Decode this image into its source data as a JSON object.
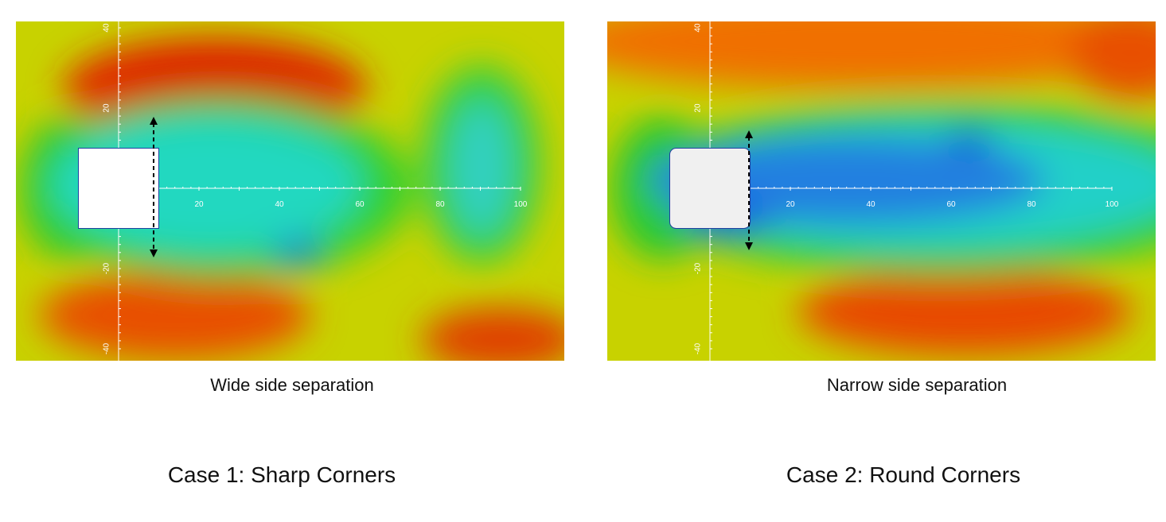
{
  "panels": [
    {
      "caption": "Wide side separation",
      "title": "Case 1: Sharp Corners",
      "xticks": [
        20,
        40,
        60,
        80,
        100
      ],
      "yticks": [
        40,
        20,
        -20,
        -40
      ]
    },
    {
      "caption": "Narrow side separation",
      "title": "Case 2: Round Corners",
      "xticks": [
        20,
        40,
        60,
        80,
        100
      ],
      "yticks": [
        40,
        20,
        -20,
        -40
      ]
    }
  ]
}
